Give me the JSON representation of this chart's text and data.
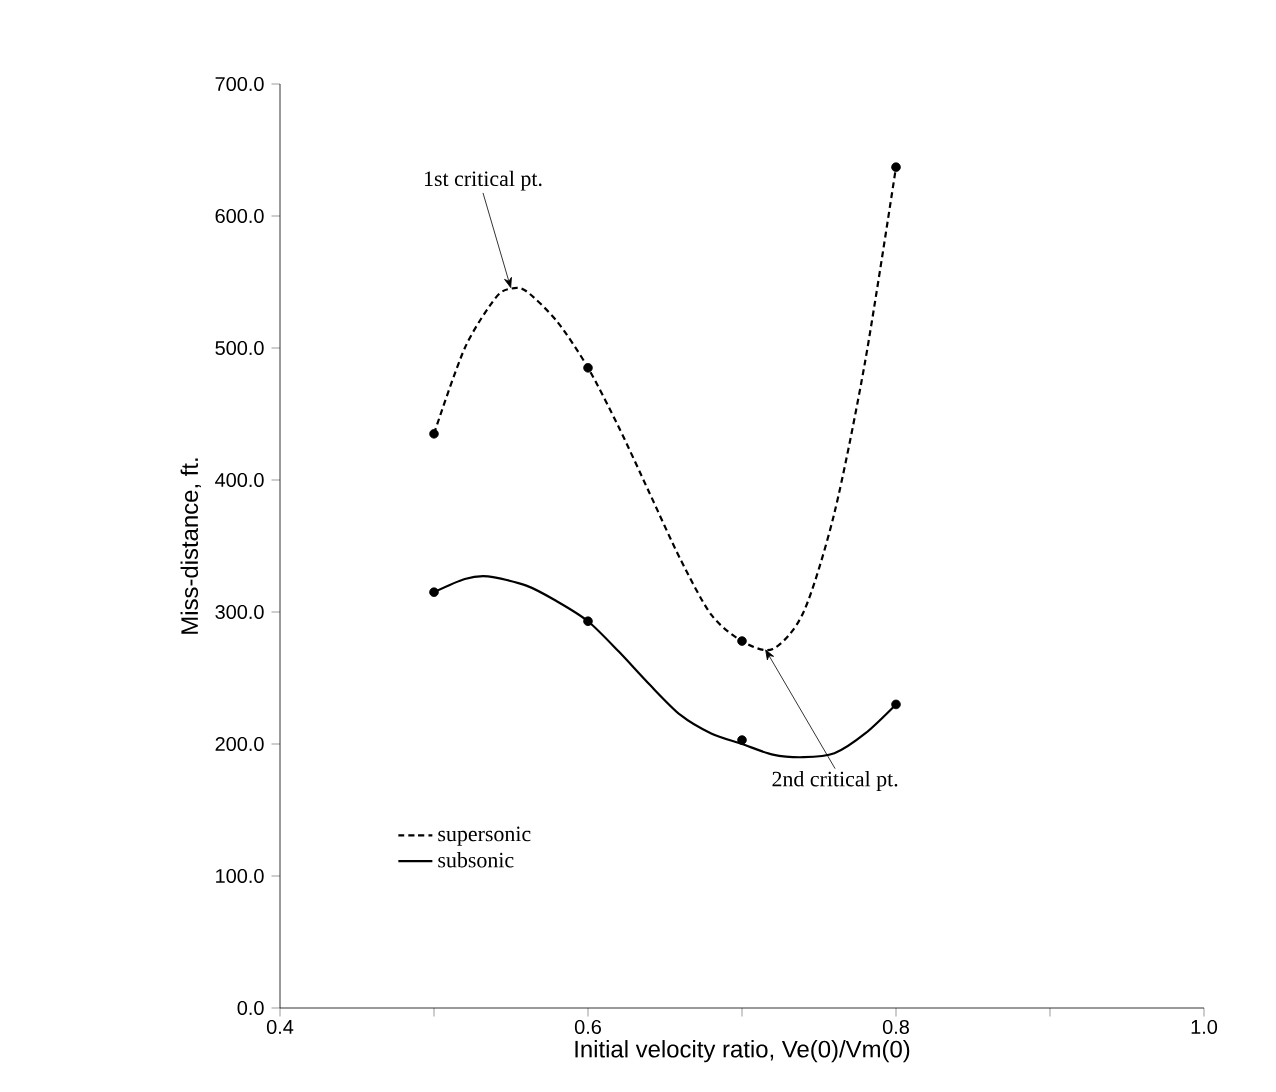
{
  "chart_data": {
    "type": "scatter",
    "xlabel": "Initial velocity ratio, Ve(0)/Vm(0)",
    "ylabel": "Miss-distance, ft.",
    "xlim": [
      0.4,
      1.0
    ],
    "ylim": [
      0,
      700
    ],
    "xticks": [
      0.4,
      {
        "value": 0.5,
        "label": null
      },
      0.6,
      {
        "value": 0.7,
        "label": null
      },
      0.8,
      {
        "value": 0.9,
        "label": null
      },
      {
        "value": 1.0,
        "label": "1.0"
      }
    ],
    "yticks": [
      {
        "value": 0,
        "label": "0.0"
      },
      {
        "value": 100,
        "label": "100.0"
      },
      {
        "value": 200,
        "label": "200.0"
      },
      {
        "value": 300,
        "label": "300.0"
      },
      {
        "value": 400,
        "label": "400.0"
      },
      {
        "value": 500,
        "label": "500.0"
      },
      {
        "value": 600,
        "label": "600.0"
      },
      {
        "value": 700,
        "label": "700.0"
      }
    ],
    "series": [
      {
        "name": "supersonic",
        "type": "line",
        "color": "#000000",
        "line_style": "dashed",
        "x": [
          0.5,
          0.52,
          0.54,
          0.55,
          0.56,
          0.58,
          0.6,
          0.62,
          0.64,
          0.66,
          0.68,
          0.7,
          0.72,
          0.74,
          0.76,
          0.78,
          0.8
        ],
        "values": [
          435,
          500,
          538,
          545,
          543,
          520,
          485,
          440,
          390,
          340,
          298,
          278,
          272,
          300,
          375,
          490,
          637
        ]
      },
      {
        "name": "subsonic",
        "type": "line",
        "color": "#000000",
        "line_style": "solid",
        "x": [
          0.5,
          0.52,
          0.535,
          0.56,
          0.58,
          0.6,
          0.62,
          0.64,
          0.66,
          0.68,
          0.7,
          0.72,
          0.74,
          0.76,
          0.78,
          0.8
        ],
        "values": [
          315,
          325,
          327,
          320,
          308,
          293,
          270,
          245,
          222,
          208,
          200,
          192,
          190,
          193,
          208,
          230
        ]
      },
      {
        "color": "#000000",
        "marker": "circle",
        "x": [
          0.5,
          0.6,
          0.7,
          0.8
        ],
        "values": [
          435,
          485,
          278,
          637
        ]
      },
      {
        "color": "#000000",
        "marker": "circle",
        "x": [
          0.5,
          0.6,
          0.7,
          0.8
        ],
        "values": [
          315,
          293,
          203,
          230
        ]
      }
    ],
    "legend": "bottom left",
    "grid": false,
    "annotations": [
      {
        "text": "1st critical pt.",
        "x": 0.55,
        "y": 545
      },
      {
        "text": "2nd critical pt.",
        "x": 0.715,
        "y": 272
      }
    ]
  }
}
